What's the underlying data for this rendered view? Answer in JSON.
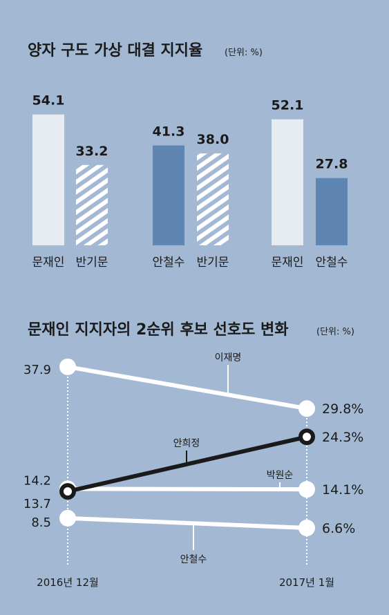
{
  "colors": {
    "background": "#a3b9d3",
    "bar_light": "#e7ecf3",
    "bar_blue": "#5f86b3",
    "bar_hatch": "#ffffff",
    "line_white": "#ffffff",
    "line_black": "#1a1a1a"
  },
  "chart_data": [
    {
      "type": "bar",
      "title": "양자 구도 가상 대결 지지율",
      "unit": "(단위: %)",
      "groups": [
        {
          "bars": [
            {
              "name": "문재인",
              "value": 54.1,
              "label": "54.1",
              "style": "light"
            },
            {
              "name": "반기문",
              "value": 33.2,
              "label": "33.2",
              "style": "hatch"
            }
          ]
        },
        {
          "bars": [
            {
              "name": "안철수",
              "value": 41.3,
              "label": "41.3",
              "style": "blue"
            },
            {
              "name": "반기문",
              "value": 38.0,
              "label": "38.0",
              "style": "hatch"
            }
          ]
        },
        {
          "bars": [
            {
              "name": "문재인",
              "value": 52.1,
              "label": "52.1",
              "style": "light"
            },
            {
              "name": "안철수",
              "value": 27.8,
              "label": "27.8",
              "style": "blue"
            }
          ]
        }
      ]
    },
    {
      "type": "line",
      "title": "문재인 지지자의 2순위 후보 선호도 변화",
      "unit": "(단위: %)",
      "x": [
        "2016년 12월",
        "2017년 1월"
      ],
      "series": [
        {
          "name": "이재명",
          "values": [
            37.9,
            29.8
          ],
          "labels": [
            "37.9",
            "29.8%"
          ],
          "color": "white"
        },
        {
          "name": "안희정",
          "values": [
            13.7,
            24.3
          ],
          "labels": [
            "13.7",
            "24.3%"
          ],
          "color": "black"
        },
        {
          "name": "박원순",
          "values": [
            14.2,
            14.1
          ],
          "labels": [
            "14.2",
            "14.1%"
          ],
          "color": "white"
        },
        {
          "name": "안철수",
          "values": [
            8.5,
            6.6
          ],
          "labels": [
            "8.5",
            "6.6%"
          ],
          "color": "white"
        }
      ]
    }
  ]
}
